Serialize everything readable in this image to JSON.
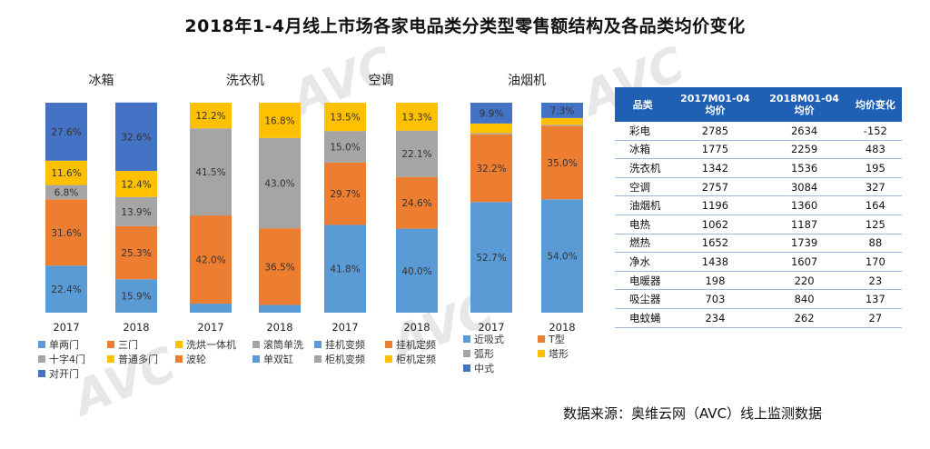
{
  "title": "2018年1-4月线上市场各家电品类分类型零售额结构及各品类均价变化",
  "source_note": "数据来源：奥维云网（AVC）线上监测数据",
  "watermark": {
    "main": "AVC 奥维云网",
    "sub": "ALL VIEW CLOUD"
  },
  "chart_data": {
    "type": "bar",
    "stacked": true,
    "ylim": [
      0,
      100
    ],
    "groups": [
      {
        "name": "冰箱",
        "years": [
          "2017",
          "2018"
        ],
        "segments": [
          {
            "name": "单两门",
            "color": "#5b9bd5",
            "values": [
              22.4,
              15.9
            ]
          },
          {
            "name": "三门",
            "color": "#ed7d31",
            "values": [
              31.6,
              25.3
            ]
          },
          {
            "name": "十字4门",
            "color": "#a5a5a5",
            "values": [
              6.8,
              13.9
            ]
          },
          {
            "name": "普通多门",
            "color": "#ffc000",
            "values": [
              11.6,
              12.4
            ]
          },
          {
            "name": "对开门",
            "color": "#4472c4",
            "values": [
              27.6,
              32.6
            ]
          }
        ]
      },
      {
        "name": "洗衣机",
        "years": [
          "2017",
          "2018"
        ],
        "segments": [
          {
            "name": "单双缸",
            "color": "#5b9bd5",
            "values": [
              4.3,
              3.7
            ]
          },
          {
            "name": "波轮",
            "color": "#ed7d31",
            "values": [
              42.0,
              36.5
            ]
          },
          {
            "name": "滚筒单洗",
            "color": "#a5a5a5",
            "values": [
              41.5,
              43.0
            ]
          },
          {
            "name": "洗烘一体机",
            "color": "#ffc000",
            "values": [
              12.2,
              16.8
            ]
          }
        ]
      },
      {
        "name": "空调",
        "years": [
          "2017",
          "2018"
        ],
        "segments": [
          {
            "name": "挂机变频",
            "color": "#5b9bd5",
            "values": [
              41.8,
              40.0
            ]
          },
          {
            "name": "挂机定频",
            "color": "#ed7d31",
            "values": [
              29.7,
              24.6
            ]
          },
          {
            "name": "柜机变频",
            "color": "#a5a5a5",
            "values": [
              15.0,
              22.1
            ]
          },
          {
            "name": "柜机定频",
            "color": "#ffc000",
            "values": [
              13.5,
              13.3
            ]
          }
        ]
      },
      {
        "name": "油烟机",
        "years": [
          "2017",
          "2018"
        ],
        "segments": [
          {
            "name": "近吸式",
            "color": "#5b9bd5",
            "values": [
              52.7,
              54.0
            ]
          },
          {
            "name": "T型",
            "color": "#ed7d31",
            "values": [
              32.2,
              35.0
            ]
          },
          {
            "name": "弧形",
            "color": "#a5a5a5",
            "values": [
              0.6,
              0.5
            ]
          },
          {
            "name": "塔形",
            "color": "#ffc000",
            "values": [
              4.6,
              3.2
            ]
          },
          {
            "name": "中式",
            "color": "#4472c4",
            "values": [
              9.9,
              7.3
            ]
          }
        ]
      }
    ],
    "labels_shown": {
      "冰箱": [
        [
          "22.4%",
          "31.6%",
          "6.8%",
          "11.6%",
          "27.6%"
        ],
        [
          "15.9%",
          "25.3%",
          "13.9%",
          "12.4%",
          "32.6%"
        ]
      ],
      "洗衣机": [
        [
          "",
          "42.0%",
          "41.5%",
          "12.2%"
        ],
        [
          "",
          "36.5%",
          "43.0%",
          "16.8%"
        ]
      ],
      "空调": [
        [
          "41.8%",
          "29.7%",
          "15.0%",
          "13.5%"
        ],
        [
          "40.0%",
          "24.6%",
          "22.1%",
          "13.3%"
        ]
      ],
      "油烟机": [
        [
          "52.7%",
          "32.2%",
          "",
          "",
          "9.9%"
        ],
        [
          "54.0%",
          "35.0%",
          "",
          "",
          "7.3%"
        ]
      ]
    },
    "legends": [
      {
        "group": "冰箱",
        "items": [
          {
            "name": "单两门",
            "color": "#5b9bd5"
          },
          {
            "name": "三门",
            "color": "#ed7d31"
          },
          {
            "name": "十字4门",
            "color": "#a5a5a5"
          },
          {
            "name": "普通多门",
            "color": "#ffc000"
          },
          {
            "name": "对开门",
            "color": "#4472c4"
          }
        ]
      },
      {
        "group": "洗衣机",
        "items": [
          {
            "name": "洗烘一体机",
            "color": "#ffc000"
          },
          {
            "name": "滚筒单洗",
            "color": "#a5a5a5"
          },
          {
            "name": "波轮",
            "color": "#ed7d31"
          },
          {
            "name": "单双缸",
            "color": "#5b9bd5"
          }
        ]
      },
      {
        "group": "空调",
        "items": [
          {
            "name": "挂机变频",
            "color": "#5b9bd5"
          },
          {
            "name": "挂机定频",
            "color": "#ed7d31"
          },
          {
            "name": "柜机变频",
            "color": "#a5a5a5"
          },
          {
            "name": "柜机定频",
            "color": "#ffc000"
          }
        ]
      },
      {
        "group": "油烟机",
        "items": [
          {
            "name": "近吸式",
            "color": "#5b9bd5"
          },
          {
            "name": "T型",
            "color": "#ed7d31"
          },
          {
            "name": "弧形",
            "color": "#a5a5a5"
          },
          {
            "name": "塔形",
            "color": "#ffc000"
          },
          {
            "name": "中式",
            "color": "#4472c4"
          }
        ]
      }
    ]
  },
  "price_table": {
    "headers": [
      "品类",
      "2017M01-04\n均价",
      "2018M01-04\n均价",
      "均价变化"
    ],
    "rows": [
      [
        "彩电",
        "2785",
        "2634",
        "-152"
      ],
      [
        "冰箱",
        "1775",
        "2259",
        "483"
      ],
      [
        "洗衣机",
        "1342",
        "1536",
        "195"
      ],
      [
        "空调",
        "2757",
        "3084",
        "327"
      ],
      [
        "油烟机",
        "1196",
        "1360",
        "164"
      ],
      [
        "电热",
        "1062",
        "1187",
        "125"
      ],
      [
        "燃热",
        "1652",
        "1739",
        "88"
      ],
      [
        "净水",
        "1438",
        "1607",
        "170"
      ],
      [
        "电暖器",
        "198",
        "220",
        "23"
      ],
      [
        "吸尘器",
        "703",
        "840",
        "137"
      ],
      [
        "电蚊蝇",
        "234",
        "262",
        "27"
      ]
    ]
  }
}
